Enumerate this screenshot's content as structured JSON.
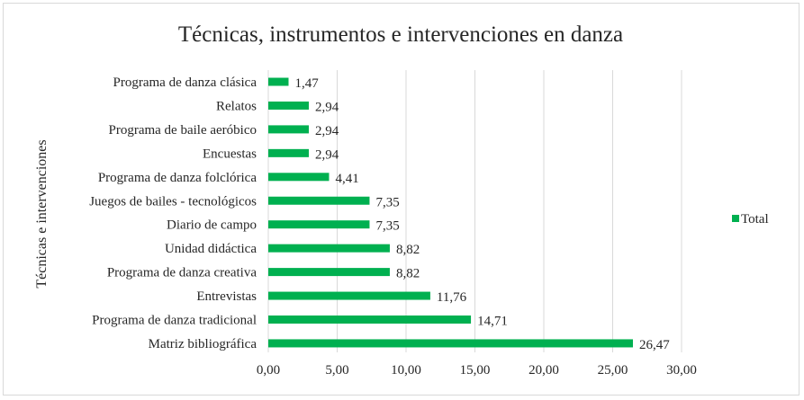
{
  "chart_data": {
    "type": "bar",
    "orientation": "horizontal",
    "title": "Técnicas, instrumentos e intervenciones en danza",
    "ylabel": "Técnicas e intervenciones",
    "xlabel": "",
    "categories": [
      "Programa de danza clásica",
      "Relatos",
      "Programa de baile aeróbico",
      "Encuestas",
      "Programa de danza folclórica",
      "Juegos de bailes - tecnológicos",
      "Diario de campo",
      "Unidad didáctica",
      "Programa de danza creativa",
      "Entrevistas",
      "Programa de danza tradicional",
      "Matriz bibliográfica"
    ],
    "series": [
      {
        "name": "Total",
        "color": "#00b050",
        "values": [
          1.47,
          2.94,
          2.94,
          2.94,
          4.41,
          7.35,
          7.35,
          8.82,
          8.82,
          11.76,
          14.71,
          26.47
        ],
        "labels": [
          "1,47",
          "2,94",
          "2,94",
          "2,94",
          "4,41",
          "7,35",
          "7,35",
          "8,82",
          "8,82",
          "11,76",
          "14,71",
          "26,47"
        ]
      }
    ],
    "xlim": [
      0,
      30
    ],
    "xticks": [
      0,
      5,
      10,
      15,
      20,
      25,
      30
    ],
    "xtick_labels": [
      "0,00",
      "5,00",
      "10,00",
      "15,00",
      "20,00",
      "25,00",
      "30,00"
    ],
    "grid": true,
    "legend": "right"
  }
}
